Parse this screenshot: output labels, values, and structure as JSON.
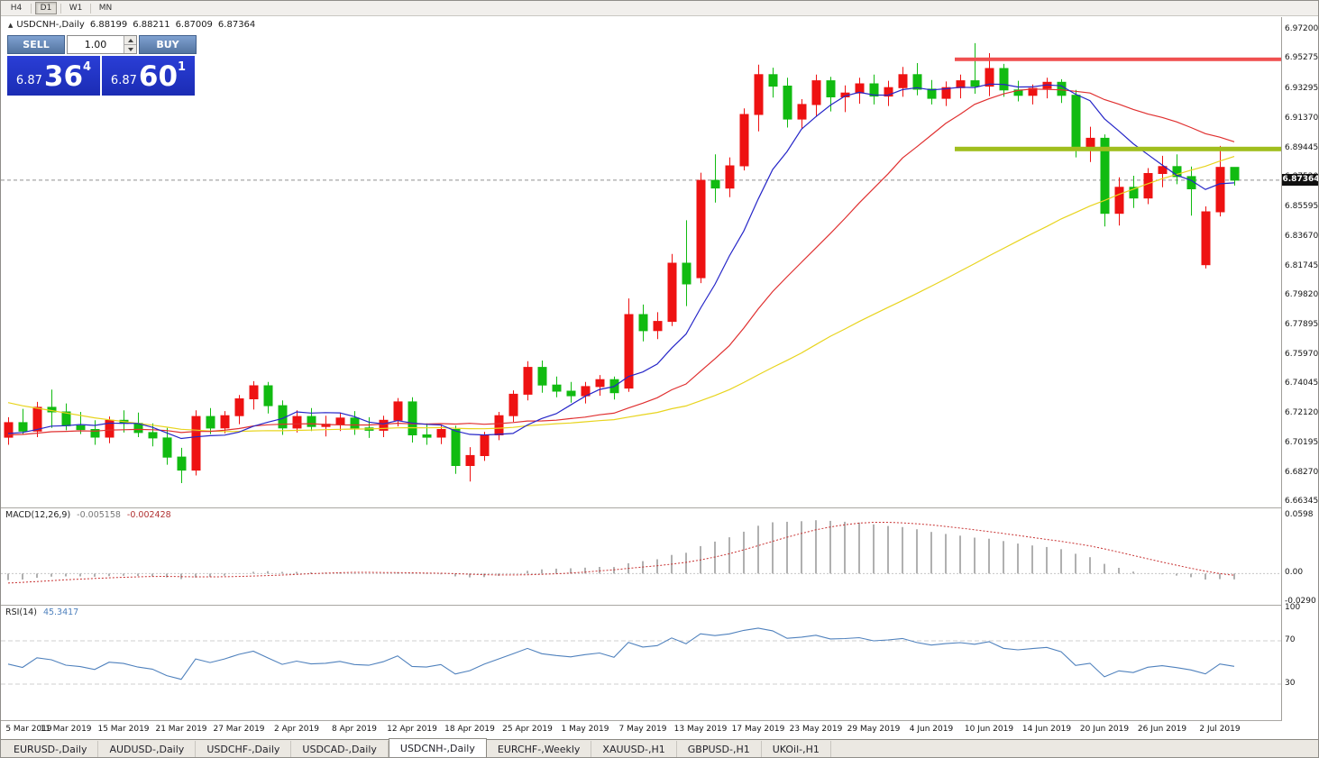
{
  "toolbar": {
    "periods": [
      {
        "label": "H4",
        "active": false
      },
      {
        "label": "D1",
        "active": true
      },
      {
        "label": "W1",
        "active": false
      },
      {
        "label": "MN",
        "active": false
      }
    ]
  },
  "symbol_header": {
    "marker": "▲",
    "title": "USDCNH-,Daily",
    "open": "6.88199",
    "high": "6.88211",
    "low": "6.87009",
    "close": "6.87364"
  },
  "trade_panel": {
    "sell_label": "SELL",
    "buy_label": "BUY",
    "volume": "1.00",
    "sell_price_major": "6.87",
    "sell_price_pips": "36",
    "sell_price_point": "4",
    "buy_price_major": "6.87",
    "buy_price_pips": "60",
    "buy_price_point": "1"
  },
  "price_axis": {
    "labels": [
      "6.97200",
      "6.95275",
      "6.93295",
      "6.91370",
      "6.89445",
      "6.87520",
      "6.85595",
      "6.83670",
      "6.81745",
      "6.79820",
      "6.77895",
      "6.75970",
      "6.74045",
      "6.72120",
      "6.70195",
      "6.68270",
      "6.66345"
    ],
    "current_price": "6.87364"
  },
  "chart_data": {
    "type": "candlestick",
    "symbol": "USDCNH-",
    "timeframe": "Daily",
    "price_range": {
      "top": 6.98,
      "bottom": 6.6625
    },
    "up_color": "#EE1212",
    "down_color": "#11BB11",
    "current_price": 6.87364,
    "moving_averages": [
      {
        "period": 8,
        "color": "#2626C8"
      },
      {
        "period": 20,
        "color": "#E03030"
      },
      {
        "period": 45,
        "color": "#E8D41E"
      }
    ],
    "levels": [
      {
        "price": 6.9525,
        "color": "#F05050",
        "thickness": 4,
        "from_index": 66
      },
      {
        "price": 6.894,
        "color": "#A0BE1E",
        "thickness": 5,
        "from_index": 66
      }
    ],
    "candles": [
      [
        "5 Mar 2019",
        6.706,
        6.719,
        6.701,
        6.7155
      ],
      [
        "6 Mar 2019",
        6.7155,
        6.7245,
        6.7075,
        6.71
      ],
      [
        "7 Mar 2019",
        6.71,
        6.729,
        6.706,
        6.7255
      ],
      [
        "8 Mar 2019",
        6.7255,
        6.737,
        6.712,
        6.7225
      ],
      [
        "11 Mar 2019",
        6.7225,
        6.728,
        6.7105,
        6.7135
      ],
      [
        "12 Mar 2019",
        6.7135,
        6.7225,
        6.708,
        6.711
      ],
      [
        "13 Mar 2019",
        6.711,
        6.717,
        6.701,
        6.706
      ],
      [
        "14 Mar 2019",
        6.706,
        6.7195,
        6.702,
        6.717
      ],
      [
        "15 Mar 2019",
        6.717,
        6.7235,
        6.709,
        6.715
      ],
      [
        "18 Mar 2019",
        6.715,
        6.722,
        6.706,
        6.709
      ],
      [
        "19 Mar 2019",
        6.709,
        6.715,
        6.7,
        6.7055
      ],
      [
        "20 Mar 2019",
        6.7055,
        6.712,
        6.688,
        6.693
      ],
      [
        "21 Mar 2019",
        6.693,
        6.699,
        6.676,
        6.6845
      ],
      [
        "22 Mar 2019",
        6.6845,
        6.7235,
        6.681,
        6.7195
      ],
      [
        "25 Mar 2019",
        6.7195,
        6.725,
        6.708,
        6.712
      ],
      [
        "26 Mar 2019",
        6.712,
        6.723,
        6.7085,
        6.72
      ],
      [
        "27 Mar 2019",
        6.72,
        6.7335,
        6.7145,
        6.731
      ],
      [
        "28 Mar 2019",
        6.731,
        6.7425,
        6.724,
        6.7395
      ],
      [
        "29 Mar 2019",
        6.7395,
        6.742,
        6.7215,
        6.7265
      ],
      [
        "1 Apr 2019",
        6.7265,
        6.73,
        6.7075,
        6.712
      ],
      [
        "2 Apr 2019",
        6.712,
        6.7235,
        6.709,
        6.7195
      ],
      [
        "3 Apr 2019",
        6.7195,
        6.725,
        6.71,
        6.713
      ],
      [
        "4 Apr 2019",
        6.713,
        6.72,
        6.7065,
        6.7145
      ],
      [
        "5 Apr 2019",
        6.7145,
        6.722,
        6.71,
        6.7185
      ],
      [
        "8 Apr 2019",
        6.7185,
        6.723,
        6.7075,
        6.712
      ],
      [
        "9 Apr 2019",
        6.712,
        6.719,
        6.7055,
        6.7105
      ],
      [
        "10 Apr 2019",
        6.7105,
        6.72,
        6.706,
        6.717
      ],
      [
        "11 Apr 2019",
        6.717,
        6.7315,
        6.713,
        6.729
      ],
      [
        "12 Apr 2019",
        6.729,
        6.732,
        6.7025,
        6.7075
      ],
      [
        "15 Apr 2019",
        6.7075,
        6.715,
        6.701,
        6.706
      ],
      [
        "16 Apr 2019",
        6.706,
        6.714,
        6.7015,
        6.711
      ],
      [
        "17 Apr 2019",
        6.711,
        6.7135,
        6.682,
        6.6875
      ],
      [
        "18 Apr 2019",
        6.6875,
        6.6995,
        6.677,
        6.694
      ],
      [
        "22 Apr 2019",
        6.694,
        6.7095,
        6.6905,
        6.7075
      ],
      [
        "23 Apr 2019",
        6.7075,
        6.7225,
        6.704,
        6.72
      ],
      [
        "24 Apr 2019",
        6.72,
        6.7365,
        6.716,
        6.734
      ],
      [
        "25 Apr 2019",
        6.734,
        6.7555,
        6.73,
        6.7515
      ],
      [
        "26 Apr 2019",
        6.7515,
        6.756,
        6.735,
        6.74
      ],
      [
        "29 Apr 2019",
        6.74,
        6.7455,
        6.732,
        6.736
      ],
      [
        "30 Apr 2019",
        6.736,
        6.742,
        6.7285,
        6.733
      ],
      [
        "1 May 2019",
        6.733,
        6.742,
        6.728,
        6.739
      ],
      [
        "2 May 2019",
        6.739,
        6.7465,
        6.733,
        6.7435
      ],
      [
        "3 May 2019",
        6.7435,
        6.7455,
        6.7305,
        6.735
      ],
      [
        "6 May 2019",
        6.738,
        6.7965,
        6.7355,
        6.786
      ],
      [
        "7 May 2019",
        6.786,
        6.7925,
        6.7685,
        6.7755
      ],
      [
        "8 May 2019",
        6.7755,
        6.7875,
        6.77,
        6.7815
      ],
      [
        "9 May 2019",
        6.7815,
        6.8255,
        6.7785,
        6.8195
      ],
      [
        "10 May 2019",
        6.8195,
        6.8475,
        6.7915,
        6.806
      ],
      [
        "13 May 2019",
        6.81,
        6.8785,
        6.8065,
        6.8735
      ],
      [
        "14 May 2019",
        6.8735,
        6.8905,
        6.859,
        6.8685
      ],
      [
        "15 May 2019",
        6.8685,
        6.8885,
        6.8625,
        6.883
      ],
      [
        "16 May 2019",
        6.883,
        6.9205,
        6.88,
        6.9165
      ],
      [
        "17 May 2019",
        6.9165,
        6.949,
        6.9055,
        6.9425
      ],
      [
        "20 May 2019",
        6.9425,
        6.947,
        6.9275,
        6.935
      ],
      [
        "21 May 2019",
        6.935,
        6.9405,
        6.908,
        6.9135
      ],
      [
        "22 May 2019",
        6.9135,
        6.9265,
        6.907,
        6.923
      ],
      [
        "23 May 2019",
        6.923,
        6.9425,
        6.915,
        6.9385
      ],
      [
        "24 May 2019",
        6.9385,
        6.941,
        6.9185,
        6.928
      ],
      [
        "27 May 2019",
        6.928,
        6.9355,
        6.918,
        6.9305
      ],
      [
        "28 May 2019",
        6.9305,
        6.9405,
        6.9235,
        6.9365
      ],
      [
        "29 May 2019",
        6.9365,
        6.9425,
        6.923,
        6.9285
      ],
      [
        "30 May 2019",
        6.9285,
        6.9385,
        6.922,
        6.934
      ],
      [
        "31 May 2019",
        6.934,
        6.9475,
        6.928,
        6.9425
      ],
      [
        "3 Jun 2019",
        6.9425,
        6.95,
        6.929,
        6.933
      ],
      [
        "4 Jun 2019",
        6.933,
        6.939,
        6.923,
        6.927
      ],
      [
        "5 Jun 2019",
        6.927,
        6.938,
        6.922,
        6.934
      ],
      [
        "6 Jun 2019",
        6.934,
        6.9425,
        6.927,
        6.9385
      ],
      [
        "7 Jun 2019",
        6.9385,
        6.963,
        6.93,
        6.935
      ],
      [
        "10 Jun 2019",
        6.935,
        6.9565,
        6.9285,
        6.9465
      ],
      [
        "11 Jun 2019",
        6.9465,
        6.9495,
        6.928,
        6.9325
      ],
      [
        "12 Jun 2019",
        6.9325,
        6.9385,
        6.925,
        6.929
      ],
      [
        "13 Jun 2019",
        6.929,
        6.936,
        6.923,
        6.9335
      ],
      [
        "14 Jun 2019",
        6.9335,
        6.9405,
        6.927,
        6.9375
      ],
      [
        "17 Jun 2019",
        6.9375,
        6.9395,
        6.924,
        6.929
      ],
      [
        "18 Jun 2019",
        6.929,
        6.9325,
        6.8885,
        6.895
      ],
      [
        "19 Jun 2019",
        6.895,
        6.9085,
        6.8855,
        6.901
      ],
      [
        "20 Jun 2019",
        6.901,
        6.9035,
        6.8435,
        6.852
      ],
      [
        "21 Jun 2019",
        6.852,
        6.8755,
        6.844,
        6.869
      ],
      [
        "24 Jun 2019",
        6.869,
        6.8765,
        6.8555,
        6.862
      ],
      [
        "25 Jun 2019",
        6.862,
        6.8815,
        6.858,
        6.878
      ],
      [
        "26 Jun 2019",
        6.878,
        6.8895,
        6.869,
        6.8825
      ],
      [
        "27 Jun 2019",
        6.8825,
        6.8905,
        6.871,
        6.876
      ],
      [
        "28 Jun 2019",
        6.876,
        6.8825,
        6.8505,
        6.868
      ],
      [
        "1 Jul 2019",
        6.8185,
        6.8565,
        6.816,
        6.853
      ],
      [
        "2 Jul 2019",
        6.853,
        6.896,
        6.85,
        6.882
      ],
      [
        "3 Jul 2019",
        6.88199,
        6.88211,
        6.87009,
        6.87364
      ]
    ]
  },
  "macd_panel": {
    "label": "MACD(12,26,9)",
    "main_value": "-0.005158",
    "signal_value": "-0.002428",
    "axis_labels": [
      "0.0598",
      "0.00",
      "-0.0290"
    ],
    "params": {
      "fast": 12,
      "slow": 26,
      "signal": 9
    },
    "range": {
      "max": 0.064,
      "min": -0.03
    },
    "bar_color": "#B0B0B0",
    "signal_color": "#C83232"
  },
  "rsi_panel": {
    "label": "RSI(14)",
    "value": "45.3417",
    "period": 14,
    "axis_labels": [
      "100",
      "70",
      "30"
    ],
    "levels": [
      70,
      30
    ],
    "range": {
      "max": 100,
      "min": 0
    },
    "line_color": "#4F81BD"
  },
  "date_axis": {
    "label_every": 4
  },
  "tabs": [
    {
      "label": "EURUSD-,Daily",
      "active": false
    },
    {
      "label": "AUDUSD-,Daily",
      "active": false
    },
    {
      "label": "USDCHF-,Daily",
      "active": false
    },
    {
      "label": "USDCAD-,Daily",
      "active": false
    },
    {
      "label": "USDCNH-,Daily",
      "active": true
    },
    {
      "label": "EURCHF-,Weekly",
      "active": false
    },
    {
      "label": "XAUUSD-,H1",
      "active": false
    },
    {
      "label": "GBPUSD-,H1",
      "active": false
    },
    {
      "label": "UKOil-,H1",
      "active": false
    }
  ]
}
